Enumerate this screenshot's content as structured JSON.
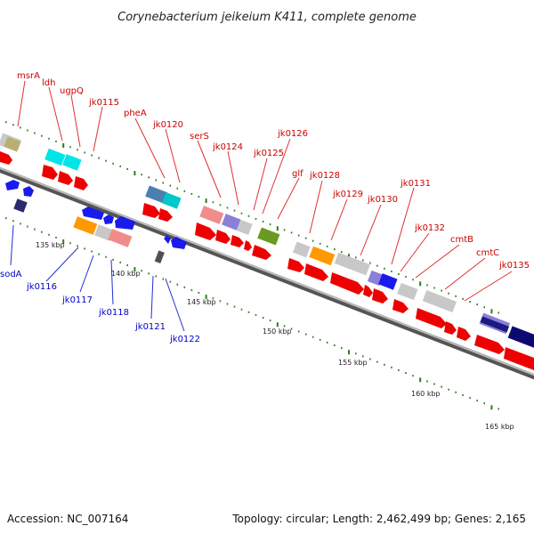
{
  "title": "Corynebacterium jeikeium K411, complete genome",
  "footer": {
    "accession": "Accession: NC_007164",
    "topology": "Topology: circular; Length: 2,462,499 bp; Genes: 2,165"
  },
  "colors": {
    "forward_label": "#cc0000",
    "reverse_label": "#0000cc",
    "backbone": "#888888",
    "tick": "#2e7d1e"
  },
  "scale_labels": [
    "135 kbp",
    "140 kbp",
    "145 kbp",
    "150 kbp",
    "155 kbp",
    "160 kbp",
    "165 kbp"
  ],
  "forward_labels": [
    "msrA",
    "ldh",
    "ugpQ",
    "jk0115",
    "pheA",
    "jk0120",
    "serS",
    "jk0124",
    "jk0125",
    "jk0126",
    "glf",
    "jk0128",
    "jk0129",
    "jk0130",
    "jk0131",
    "jk0132",
    "cmtB",
    "cmtC",
    "jk0135"
  ],
  "reverse_labels": [
    "sodA",
    "jk0116",
    "jk0117",
    "jk0118",
    "jk0121",
    "jk0122"
  ]
}
